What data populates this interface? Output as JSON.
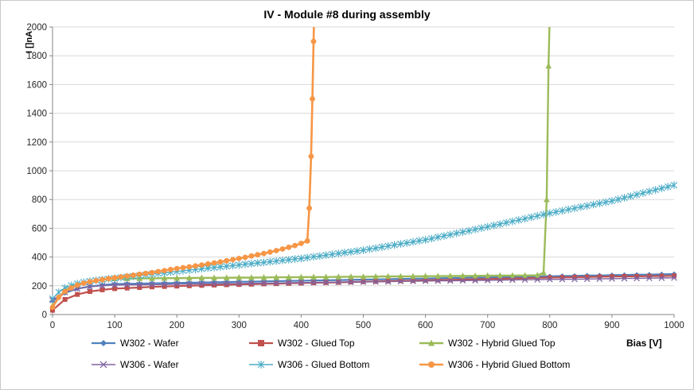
{
  "chart_data": {
    "type": "line",
    "title": "IV - Module #8 during assembly",
    "xlabel": "Bias [V]",
    "ylabel": "I []nA",
    "xlim": [
      0,
      1000
    ],
    "ylim": [
      0,
      2000
    ],
    "xticks": [
      0,
      100,
      200,
      300,
      400,
      500,
      600,
      700,
      800,
      900,
      1000
    ],
    "yticks": [
      0,
      200,
      400,
      600,
      800,
      1000,
      1200,
      1400,
      1600,
      1800,
      2000
    ],
    "grid": "horizontal",
    "legend_position": "bottom",
    "colors": {
      "axis": "#868686",
      "gridline": "#d9d9d9",
      "tick_text": "#262626"
    },
    "series": [
      {
        "name": "W302 - Wafer",
        "color": "#4F81BD",
        "marker": "diamond",
        "line_width": 2.2,
        "x": [
          0,
          20,
          40,
          60,
          80,
          100,
          120,
          140,
          160,
          180,
          200,
          220,
          240,
          260,
          280,
          300,
          320,
          340,
          360,
          380,
          400,
          420,
          440,
          460,
          480,
          500,
          520,
          540,
          560,
          580,
          600,
          620,
          640,
          660,
          680,
          700,
          720,
          740,
          760,
          780,
          800,
          820,
          840,
          860,
          880,
          900,
          920,
          940,
          960,
          980,
          1000
        ],
        "y": [
          95,
          150,
          180,
          195,
          205,
          212,
          214,
          215,
          217,
          218,
          220,
          221,
          223,
          225,
          226,
          228,
          229,
          231,
          232,
          234,
          235,
          237,
          238,
          240,
          241,
          243,
          244,
          246,
          248,
          249,
          251,
          252,
          254,
          255,
          257,
          258,
          260,
          261,
          263,
          264,
          266,
          268,
          269,
          271,
          272,
          274,
          275,
          277,
          278,
          280,
          282
        ]
      },
      {
        "name": "W302 - Glued Top",
        "color": "#C0504D",
        "marker": "square",
        "line_width": 2.2,
        "x": [
          0,
          20,
          40,
          60,
          80,
          100,
          120,
          140,
          160,
          180,
          200,
          220,
          240,
          260,
          280,
          300,
          320,
          340,
          360,
          380,
          400,
          420,
          440,
          460,
          480,
          500,
          520,
          540,
          560,
          580,
          600,
          620,
          640,
          660,
          680,
          700,
          720,
          740,
          760,
          780,
          800,
          820,
          840,
          860,
          880,
          900,
          920,
          940,
          960,
          980,
          1000
        ],
        "y": [
          30,
          105,
          140,
          160,
          172,
          180,
          184,
          188,
          192,
          195,
          198,
          200,
          203,
          205,
          207,
          209,
          211,
          213,
          215,
          217,
          219,
          221,
          222,
          224,
          226,
          228,
          230,
          232,
          234,
          236,
          238,
          240,
          241,
          243,
          245,
          247,
          249,
          251,
          253,
          255,
          257,
          258,
          260,
          261,
          263,
          264,
          265,
          266,
          267,
          268,
          269
        ]
      },
      {
        "name": "W302 - Hybrid Glued Top",
        "color": "#9BBB59",
        "marker": "triangle",
        "line_width": 2.4,
        "x": [
          0,
          20,
          40,
          60,
          80,
          100,
          120,
          140,
          160,
          180,
          200,
          220,
          240,
          260,
          280,
          300,
          320,
          340,
          360,
          380,
          400,
          420,
          440,
          460,
          480,
          500,
          520,
          540,
          560,
          580,
          600,
          620,
          640,
          660,
          680,
          700,
          720,
          740,
          760,
          780,
          790,
          795,
          798,
          800
        ],
        "y": [
          60,
          170,
          210,
          230,
          242,
          250,
          251,
          251,
          252,
          253,
          253,
          254,
          255,
          255,
          256,
          257,
          257,
          258,
          259,
          259,
          260,
          261,
          261,
          262,
          263,
          263,
          264,
          265,
          265,
          266,
          267,
          267,
          268,
          269,
          269,
          270,
          271,
          271,
          272,
          273,
          290,
          800,
          1730,
          2100
        ]
      },
      {
        "name": "W306 - Wafer",
        "color": "#8064A2",
        "marker": "x",
        "line_width": 1.4,
        "x": [
          0,
          20,
          40,
          60,
          80,
          100,
          120,
          140,
          160,
          180,
          200,
          220,
          240,
          260,
          280,
          300,
          320,
          340,
          360,
          380,
          400,
          420,
          440,
          460,
          480,
          500,
          520,
          540,
          560,
          580,
          600,
          620,
          640,
          660,
          680,
          700,
          720,
          740,
          760,
          780,
          800,
          820,
          840,
          860,
          880,
          900,
          920,
          940,
          960,
          980,
          1000
        ],
        "y": [
          100,
          155,
          180,
          193,
          200,
          205,
          206,
          207,
          208,
          209,
          211,
          212,
          213,
          214,
          215,
          216,
          217,
          218,
          219,
          221,
          222,
          223,
          224,
          225,
          226,
          227,
          228,
          229,
          231,
          232,
          233,
          234,
          235,
          236,
          237,
          238,
          239,
          241,
          242,
          243,
          244,
          245,
          246,
          247,
          248,
          249,
          251,
          252,
          253,
          254,
          255
        ]
      },
      {
        "name": "W306 - Glued Bottom",
        "color": "#4BACC6",
        "marker": "star",
        "line_width": 1.4,
        "x": [
          0,
          10,
          20,
          30,
          40,
          50,
          60,
          70,
          80,
          90,
          100,
          110,
          120,
          130,
          140,
          150,
          160,
          170,
          180,
          190,
          200,
          210,
          220,
          230,
          240,
          250,
          260,
          270,
          280,
          290,
          300,
          310,
          320,
          330,
          340,
          350,
          360,
          370,
          380,
          390,
          400,
          410,
          420,
          430,
          440,
          450,
          460,
          470,
          480,
          490,
          500,
          510,
          520,
          530,
          540,
          550,
          560,
          570,
          580,
          590,
          600,
          610,
          620,
          630,
          640,
          650,
          660,
          670,
          680,
          690,
          700,
          710,
          720,
          730,
          740,
          750,
          760,
          770,
          780,
          790,
          800,
          810,
          820,
          830,
          840,
          850,
          860,
          870,
          880,
          890,
          900,
          910,
          920,
          930,
          940,
          950,
          960,
          970,
          980,
          990,
          1000
        ],
        "y": [
          110,
          155,
          185,
          202,
          215,
          225,
          232,
          238,
          243,
          248,
          252,
          257,
          262,
          266,
          271,
          276,
          281,
          286,
          290,
          295,
          300,
          305,
          309,
          314,
          318,
          323,
          327,
          332,
          336,
          341,
          345,
          350,
          354,
          359,
          363,
          368,
          372,
          377,
          381,
          386,
          390,
          396,
          402,
          407,
          413,
          419,
          425,
          431,
          436,
          442,
          448,
          455,
          462,
          470,
          477,
          484,
          491,
          498,
          506,
          513,
          520,
          529,
          538,
          547,
          556,
          565,
          574,
          583,
          592,
          601,
          610,
          620,
          629,
          639,
          648,
          658,
          667,
          677,
          686,
          696,
          705,
          714,
          722,
          731,
          739,
          748,
          756,
          765,
          773,
          782,
          790,
          801,
          812,
          823,
          834,
          845,
          856,
          867,
          878,
          889,
          900
        ]
      },
      {
        "name": "W306 - Hybrid Glued Bottom",
        "color": "#F79646",
        "marker": "circle",
        "line_width": 2.6,
        "x": [
          0,
          10,
          20,
          30,
          40,
          50,
          60,
          70,
          80,
          90,
          100,
          110,
          120,
          130,
          140,
          150,
          160,
          170,
          180,
          190,
          200,
          210,
          220,
          230,
          240,
          250,
          260,
          270,
          280,
          290,
          300,
          310,
          320,
          330,
          340,
          350,
          360,
          370,
          380,
          390,
          400,
          410,
          413,
          416,
          418,
          420,
          421
        ],
        "y": [
          50,
          120,
          160,
          185,
          205,
          218,
          228,
          236,
          243,
          250,
          256,
          262,
          268,
          274,
          280,
          286,
          292,
          299,
          306,
          313,
          320,
          326,
          332,
          338,
          345,
          352,
          359,
          366,
          374,
          382,
          390,
          398,
          407,
          416,
          425,
          435,
          445,
          456,
          468,
          480,
          495,
          512,
          740,
          1100,
          1500,
          1900,
          2100
        ]
      }
    ]
  }
}
